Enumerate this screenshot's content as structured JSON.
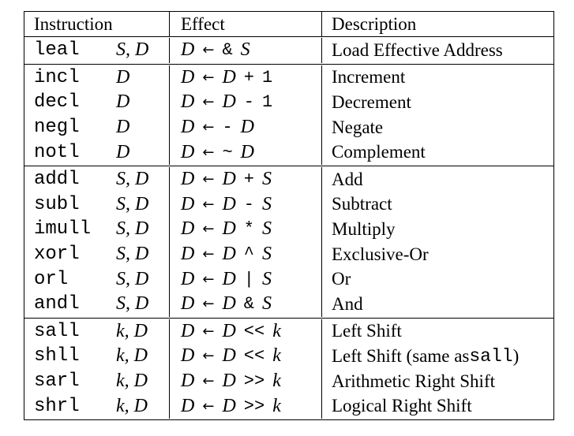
{
  "header": {
    "instruction": "Instruction",
    "effect": "Effect",
    "description": "Description"
  },
  "groups": [
    [
      {
        "op": "leal",
        "args": "S, D",
        "dst": "D",
        "arrow": "←",
        "e1": "&",
        "e1_mono": true,
        "e2": "S",
        "e3": "",
        "desc": "Load Effective Address"
      }
    ],
    [
      {
        "op": "incl",
        "args": "D",
        "dst": "D",
        "arrow": "←",
        "e1": "D",
        "e1_mono": false,
        "e2": "+",
        "e3": "1",
        "desc": "Increment"
      },
      {
        "op": "decl",
        "args": "D",
        "dst": "D",
        "arrow": "←",
        "e1": "D",
        "e1_mono": false,
        "e2": "-",
        "e3": "1",
        "desc": "Decrement"
      },
      {
        "op": "negl",
        "args": "D",
        "dst": "D",
        "arrow": "←",
        "e1": "-",
        "e1_mono": true,
        "e2": "D",
        "e3": "",
        "desc": "Negate"
      },
      {
        "op": "notl",
        "args": "D",
        "dst": "D",
        "arrow": "←",
        "e1": "~",
        "e1_mono": true,
        "e2": "D",
        "e3": "",
        "desc": "Complement"
      }
    ],
    [
      {
        "op": "addl",
        "args": "S, D",
        "dst": "D",
        "arrow": "←",
        "e1": "D",
        "e1_mono": false,
        "e2": "+",
        "e3": "S",
        "desc": "Add"
      },
      {
        "op": "subl",
        "args": "S, D",
        "dst": "D",
        "arrow": "←",
        "e1": "D",
        "e1_mono": false,
        "e2": "-",
        "e3": "S",
        "desc": "Subtract"
      },
      {
        "op": "imull",
        "args": "S, D",
        "dst": "D",
        "arrow": "←",
        "e1": "D",
        "e1_mono": false,
        "e2": "*",
        "e3": "S",
        "desc": "Multiply"
      },
      {
        "op": "xorl",
        "args": "S, D",
        "dst": "D",
        "arrow": "←",
        "e1": "D",
        "e1_mono": false,
        "e2": "^",
        "e3": "S",
        "desc": "Exclusive-Or"
      },
      {
        "op": "orl",
        "args": "S, D",
        "dst": "D",
        "arrow": "←",
        "e1": "D",
        "e1_mono": false,
        "e2": "|",
        "e3": "S",
        "desc": "Or"
      },
      {
        "op": "andl",
        "args": "S, D",
        "dst": "D",
        "arrow": "←",
        "e1": "D",
        "e1_mono": false,
        "e2": "&",
        "e3": "S",
        "desc": "And"
      }
    ],
    [
      {
        "op": "sall",
        "args": "k, D",
        "dst": "D",
        "arrow": "←",
        "e1": "D",
        "e1_mono": false,
        "e2": "<<",
        "e3": "k",
        "desc": "Left Shift"
      },
      {
        "op": "shll",
        "args": "k, D",
        "dst": "D",
        "arrow": "←",
        "e1": "D",
        "e1_mono": false,
        "e2": "<<",
        "e3": "k",
        "desc": "Left Shift (same as ",
        "desc_code": "sall",
        "desc_tail": ")"
      },
      {
        "op": "sarl",
        "args": "k, D",
        "dst": "D",
        "arrow": "←",
        "e1": "D",
        "e1_mono": false,
        "e2": ">>",
        "e3": "k",
        "desc": "Arithmetic Right Shift"
      },
      {
        "op": "shrl",
        "args": "k, D",
        "dst": "D",
        "arrow": "←",
        "e1": "D",
        "e1_mono": false,
        "e2": ">>",
        "e3": "k",
        "desc": "Logical Right Shift"
      }
    ]
  ]
}
